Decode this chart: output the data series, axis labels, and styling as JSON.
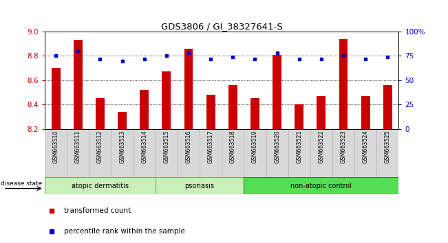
{
  "title": "GDS3806 / GI_38327641-S",
  "samples": [
    "GSM663510",
    "GSM663511",
    "GSM663512",
    "GSM663513",
    "GSM663514",
    "GSM663515",
    "GSM663516",
    "GSM663517",
    "GSM663518",
    "GSM663519",
    "GSM663520",
    "GSM663521",
    "GSM663522",
    "GSM663523",
    "GSM663524",
    "GSM663525"
  ],
  "bar_values": [
    8.7,
    8.93,
    8.45,
    8.34,
    8.52,
    8.67,
    8.86,
    8.48,
    8.56,
    8.45,
    8.81,
    8.4,
    8.47,
    8.94,
    8.47,
    8.56
  ],
  "percentile_values": [
    75,
    80,
    72,
    70,
    72,
    75,
    78,
    72,
    74,
    72,
    78,
    72,
    72,
    75,
    72,
    74
  ],
  "bar_color": "#cc0000",
  "dot_color": "#0000cc",
  "ylim_left": [
    8.2,
    9.0
  ],
  "ylim_right": [
    0,
    100
  ],
  "yticks_left": [
    8.2,
    8.4,
    8.6,
    8.8,
    9.0
  ],
  "yticks_right": [
    0,
    25,
    50,
    75,
    100
  ],
  "ytick_labels_right": [
    "0",
    "25",
    "50",
    "75",
    "100%"
  ],
  "grid_values": [
    8.4,
    8.6,
    8.8
  ],
  "groups": [
    {
      "label": "atopic dermatitis",
      "start": 0,
      "end": 5
    },
    {
      "label": "psoriasis",
      "start": 5,
      "end": 9
    },
    {
      "label": "non-atopic control",
      "start": 9,
      "end": 16
    }
  ],
  "group_colors": [
    "#c8f0b8",
    "#c8f0b8",
    "#55dd55"
  ],
  "group_edge_colors": [
    "#60b060",
    "#60b060",
    "#228822"
  ],
  "legend_labels": [
    "transformed count",
    "percentile rank within the sample"
  ],
  "disease_state_label": "disease state",
  "bar_color_legend": "#cc0000",
  "dot_color_legend": "#0000cc",
  "xlabel_color": "#cc0000",
  "ylabel_right_color": "#0000cc"
}
